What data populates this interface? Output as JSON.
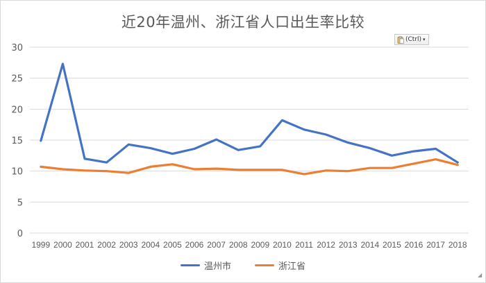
{
  "chart_data": {
    "type": "line",
    "title": "近20年温州、浙江省人口出生率比较",
    "xlabel": "",
    "ylabel": "",
    "categories": [
      "1999",
      "2000",
      "2001",
      "2002",
      "2003",
      "2004",
      "2005",
      "2006",
      "2007",
      "2008",
      "2009",
      "2010",
      "2011",
      "2012",
      "2013",
      "2014",
      "2015",
      "2016",
      "2017",
      "2018"
    ],
    "ylim": [
      0,
      30
    ],
    "yticks": [
      0,
      5,
      10,
      15,
      20,
      25,
      30
    ],
    "grid": true,
    "legend_position": "bottom",
    "series": [
      {
        "name": "温州市",
        "color": "#4472c4",
        "values": [
          14.9,
          27.3,
          12.0,
          11.4,
          14.3,
          13.7,
          12.8,
          13.6,
          15.1,
          13.4,
          14.0,
          18.2,
          16.7,
          15.9,
          14.6,
          13.7,
          12.5,
          13.2,
          13.6,
          11.4
        ]
      },
      {
        "name": "浙江省",
        "color": "#ed7d31",
        "values": [
          10.7,
          10.3,
          10.1,
          10.0,
          9.7,
          10.7,
          11.1,
          10.3,
          10.4,
          10.2,
          10.2,
          10.2,
          9.5,
          10.1,
          10.0,
          10.5,
          10.5,
          11.2,
          11.9,
          11.0
        ]
      }
    ]
  },
  "paste_options": {
    "label": "(Ctrl)",
    "icon": "clipboard-icon"
  }
}
